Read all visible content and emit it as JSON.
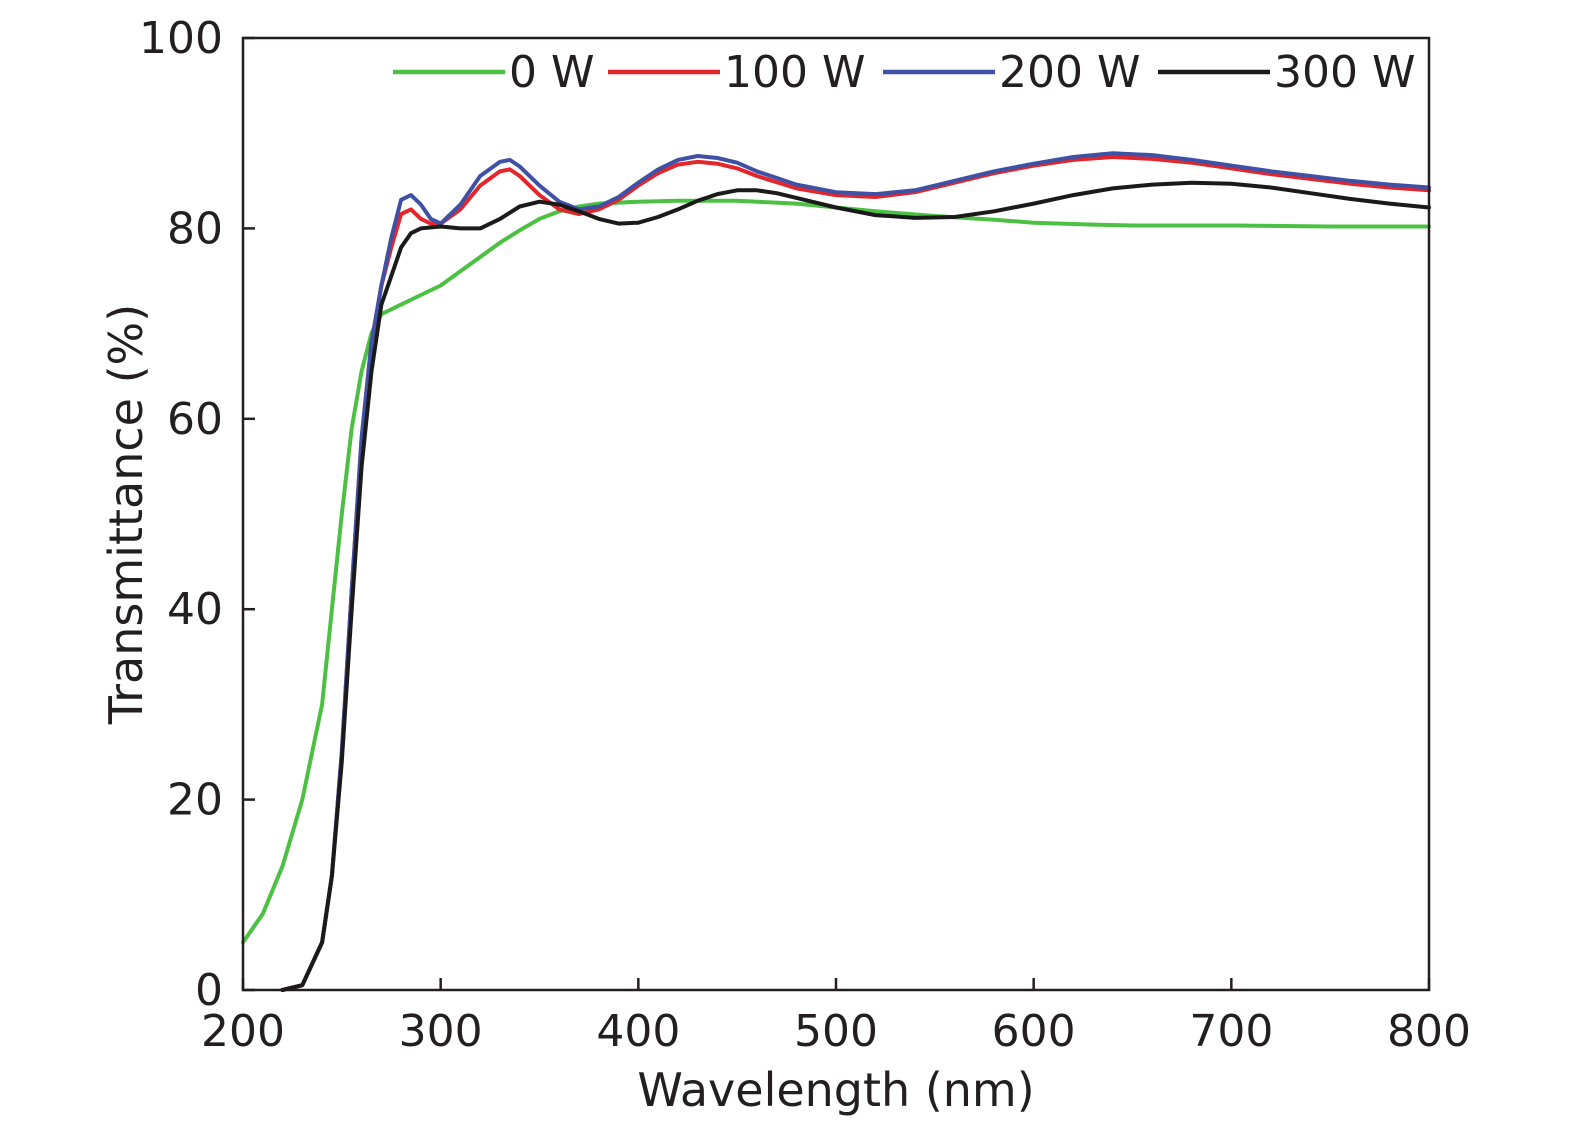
{
  "chart_data": {
    "type": "line",
    "title": "",
    "xlabel": "Wavelength (nm)",
    "ylabel": "Transmittance (%)",
    "xlim": [
      200,
      800
    ],
    "ylim": [
      0,
      100
    ],
    "xticks": [
      200,
      300,
      400,
      500,
      600,
      700,
      800
    ],
    "yticks": [
      0,
      20,
      40,
      60,
      80,
      100
    ],
    "grid": false,
    "legend_position": "top-right",
    "series": [
      {
        "name": "0 W",
        "color": "#4cc043",
        "points": [
          [
            200,
            5
          ],
          [
            210,
            8
          ],
          [
            220,
            13
          ],
          [
            230,
            20
          ],
          [
            240,
            30
          ],
          [
            245,
            40
          ],
          [
            250,
            50
          ],
          [
            255,
            59
          ],
          [
            260,
            65
          ],
          [
            265,
            69
          ],
          [
            270,
            71
          ],
          [
            280,
            72
          ],
          [
            290,
            73
          ],
          [
            300,
            74
          ],
          [
            310,
            75.5
          ],
          [
            320,
            77
          ],
          [
            330,
            78.5
          ],
          [
            340,
            79.8
          ],
          [
            350,
            81
          ],
          [
            360,
            81.8
          ],
          [
            370,
            82.3
          ],
          [
            380,
            82.6
          ],
          [
            400,
            82.8
          ],
          [
            420,
            82.9
          ],
          [
            450,
            82.9
          ],
          [
            480,
            82.6
          ],
          [
            500,
            82.2
          ],
          [
            520,
            81.8
          ],
          [
            550,
            81.3
          ],
          [
            580,
            80.9
          ],
          [
            600,
            80.6
          ],
          [
            630,
            80.4
          ],
          [
            650,
            80.3
          ],
          [
            700,
            80.3
          ],
          [
            750,
            80.2
          ],
          [
            800,
            80.2
          ]
        ]
      },
      {
        "name": "100 W",
        "color": "#e3262b",
        "points": [
          [
            220,
            0
          ],
          [
            230,
            0.5
          ],
          [
            240,
            5
          ],
          [
            245,
            12
          ],
          [
            250,
            25
          ],
          [
            255,
            42
          ],
          [
            260,
            58
          ],
          [
            265,
            68
          ],
          [
            270,
            74
          ],
          [
            275,
            78
          ],
          [
            280,
            81.5
          ],
          [
            285,
            82
          ],
          [
            290,
            81
          ],
          [
            295,
            80.5
          ],
          [
            300,
            80.5
          ],
          [
            310,
            82
          ],
          [
            320,
            84.5
          ],
          [
            330,
            86
          ],
          [
            335,
            86.2
          ],
          [
            340,
            85.5
          ],
          [
            350,
            83.5
          ],
          [
            360,
            82
          ],
          [
            370,
            81.5
          ],
          [
            380,
            82
          ],
          [
            390,
            83
          ],
          [
            400,
            84.5
          ],
          [
            410,
            85.8
          ],
          [
            420,
            86.7
          ],
          [
            430,
            87
          ],
          [
            440,
            86.8
          ],
          [
            450,
            86.3
          ],
          [
            460,
            85.5
          ],
          [
            480,
            84.2
          ],
          [
            500,
            83.5
          ],
          [
            520,
            83.3
          ],
          [
            540,
            83.8
          ],
          [
            560,
            84.8
          ],
          [
            580,
            85.8
          ],
          [
            600,
            86.6
          ],
          [
            620,
            87.2
          ],
          [
            640,
            87.5
          ],
          [
            660,
            87.3
          ],
          [
            680,
            86.9
          ],
          [
            700,
            86.3
          ],
          [
            720,
            85.7
          ],
          [
            740,
            85.2
          ],
          [
            760,
            84.7
          ],
          [
            780,
            84.3
          ],
          [
            800,
            84
          ]
        ]
      },
      {
        "name": "200 W",
        "color": "#3f51a5",
        "points": [
          [
            220,
            0
          ],
          [
            230,
            0.5
          ],
          [
            240,
            5
          ],
          [
            245,
            12
          ],
          [
            250,
            25
          ],
          [
            255,
            42
          ],
          [
            260,
            58
          ],
          [
            265,
            68
          ],
          [
            270,
            74
          ],
          [
            275,
            79
          ],
          [
            280,
            83
          ],
          [
            285,
            83.5
          ],
          [
            290,
            82.5
          ],
          [
            295,
            81
          ],
          [
            300,
            80.5
          ],
          [
            310,
            82.5
          ],
          [
            320,
            85.5
          ],
          [
            330,
            87
          ],
          [
            335,
            87.2
          ],
          [
            340,
            86.5
          ],
          [
            350,
            84.5
          ],
          [
            360,
            82.8
          ],
          [
            370,
            82
          ],
          [
            380,
            82.3
          ],
          [
            390,
            83.3
          ],
          [
            400,
            84.8
          ],
          [
            410,
            86.2
          ],
          [
            420,
            87.2
          ],
          [
            430,
            87.6
          ],
          [
            440,
            87.4
          ],
          [
            450,
            86.9
          ],
          [
            460,
            86
          ],
          [
            480,
            84.6
          ],
          [
            500,
            83.8
          ],
          [
            520,
            83.6
          ],
          [
            540,
            84
          ],
          [
            560,
            85
          ],
          [
            580,
            86
          ],
          [
            600,
            86.8
          ],
          [
            620,
            87.5
          ],
          [
            640,
            87.9
          ],
          [
            660,
            87.7
          ],
          [
            680,
            87.2
          ],
          [
            700,
            86.6
          ],
          [
            720,
            86
          ],
          [
            740,
            85.5
          ],
          [
            760,
            85
          ],
          [
            780,
            84.6
          ],
          [
            800,
            84.3
          ]
        ]
      },
      {
        "name": "300 W",
        "color": "#1a1a1a",
        "points": [
          [
            220,
            0
          ],
          [
            230,
            0.5
          ],
          [
            240,
            5
          ],
          [
            245,
            12
          ],
          [
            250,
            24
          ],
          [
            255,
            40
          ],
          [
            260,
            55
          ],
          [
            265,
            65
          ],
          [
            270,
            72
          ],
          [
            275,
            75
          ],
          [
            280,
            78
          ],
          [
            285,
            79.5
          ],
          [
            290,
            80
          ],
          [
            300,
            80.2
          ],
          [
            310,
            80
          ],
          [
            320,
            80
          ],
          [
            330,
            81
          ],
          [
            340,
            82.3
          ],
          [
            350,
            82.8
          ],
          [
            360,
            82.5
          ],
          [
            370,
            81.8
          ],
          [
            380,
            81
          ],
          [
            390,
            80.5
          ],
          [
            400,
            80.6
          ],
          [
            410,
            81.2
          ],
          [
            420,
            82
          ],
          [
            430,
            82.9
          ],
          [
            440,
            83.6
          ],
          [
            450,
            84
          ],
          [
            460,
            84
          ],
          [
            470,
            83.7
          ],
          [
            480,
            83.2
          ],
          [
            500,
            82.2
          ],
          [
            520,
            81.4
          ],
          [
            540,
            81.1
          ],
          [
            560,
            81.2
          ],
          [
            580,
            81.8
          ],
          [
            600,
            82.6
          ],
          [
            620,
            83.5
          ],
          [
            640,
            84.2
          ],
          [
            660,
            84.6
          ],
          [
            680,
            84.8
          ],
          [
            700,
            84.7
          ],
          [
            720,
            84.3
          ],
          [
            740,
            83.7
          ],
          [
            760,
            83.1
          ],
          [
            780,
            82.6
          ],
          [
            800,
            82.2
          ]
        ]
      }
    ]
  }
}
